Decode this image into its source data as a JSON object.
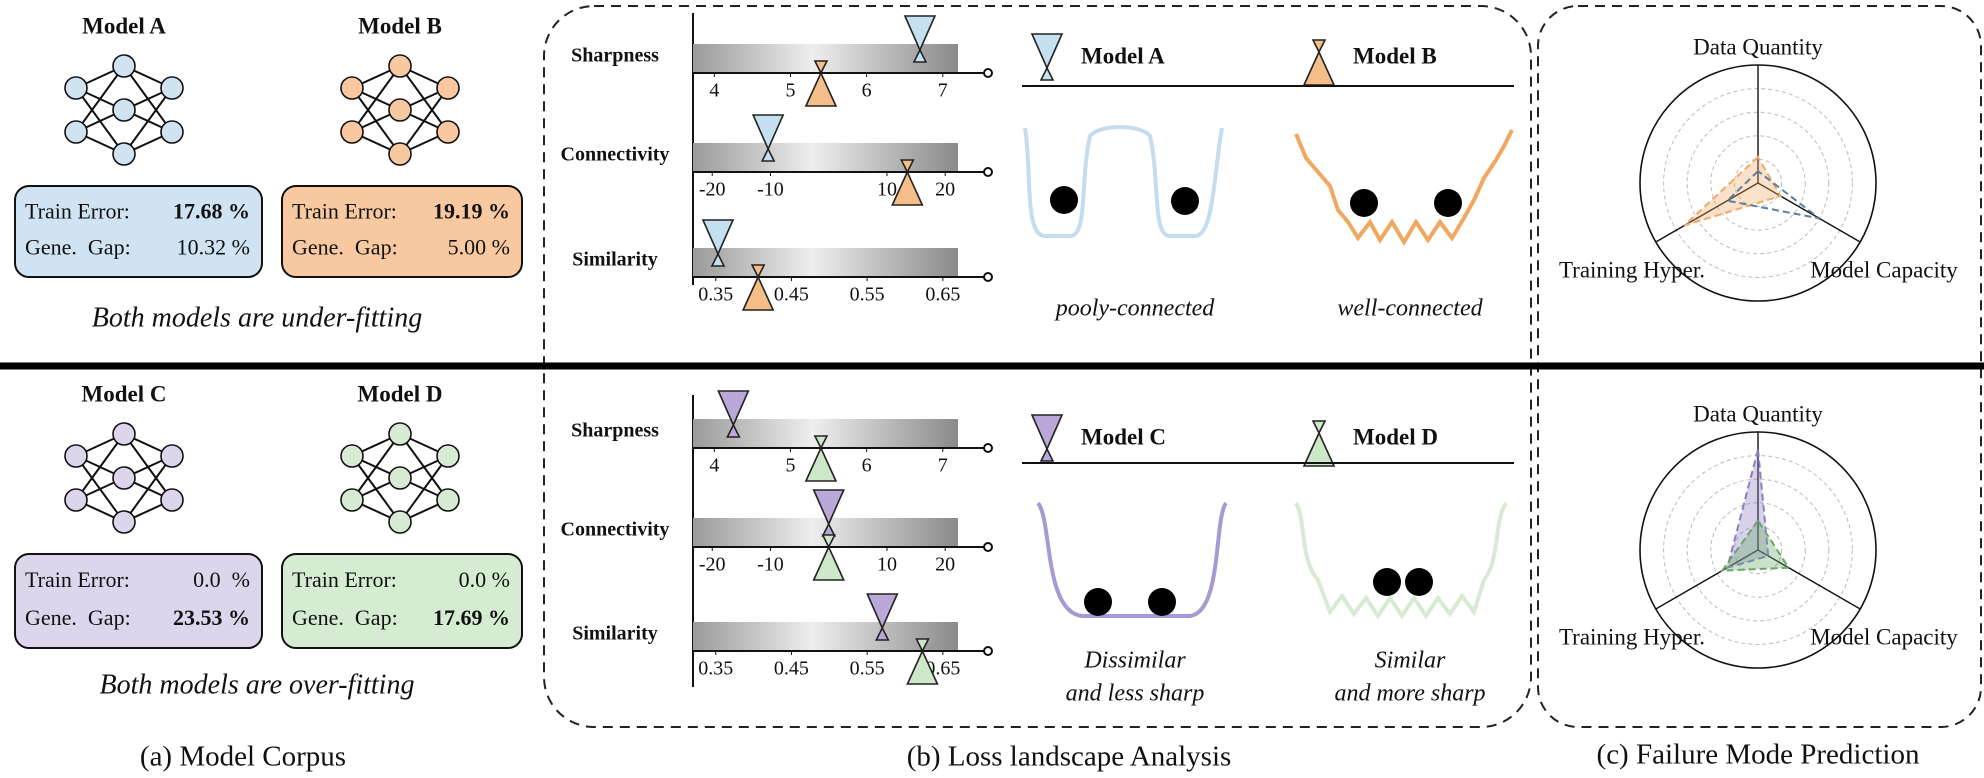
{
  "corpus": {
    "caption": "(a) Model Corpus",
    "rows": [
      {
        "models": [
          {
            "name": "Model A",
            "color": "#cfe3f3",
            "train_error_label": "Train Error:",
            "train_error": "17.68 %",
            "train_error_bold": true,
            "gap_label": "Gene.  Gap:",
            "gap": "10.32 %",
            "gap_bold": false
          },
          {
            "name": "Model B",
            "color": "#f8c9a0",
            "train_error_label": "Train Error:",
            "train_error": "19.19 %",
            "train_error_bold": true,
            "gap_label": "Gene.  Gap:",
            "gap": "5.00 %",
            "gap_bold": false
          }
        ],
        "conclusion": "Both models are under-fitting"
      },
      {
        "models": [
          {
            "name": "Model C",
            "color": "#ddd5ec",
            "train_error_label": "Train Error:",
            "train_error": "0.0  %",
            "train_error_bold": false,
            "gap_label": "Gene.  Gap:",
            "gap": "23.53 %",
            "gap_bold": true
          },
          {
            "name": "Model D",
            "color": "#d5ecd2",
            "train_error_label": "Train Error:",
            "train_error": "0.0 %",
            "train_error_bold": false,
            "gap_label": "Gene.  Gap:",
            "gap": "17.69 %",
            "gap_bold": true
          }
        ],
        "conclusion": "Both models are over-fitting"
      }
    ]
  },
  "landscape": {
    "caption": "(b) Loss landscape Analysis",
    "rows": [
      {
        "metrics": [
          {
            "name": "Sharpness",
            "xlim": [
              3.72,
              7.2
            ],
            "xticks": [
              4,
              5,
              6,
              7
            ]
          },
          {
            "name": "Connectivity",
            "xlim": [
              -23.3,
              22.2
            ],
            "xticks": [
              -20,
              -10,
              10,
              20
            ]
          },
          {
            "name": "Similarity",
            "xlim": [
              0.32,
              0.67
            ],
            "xticks": [
              0.35,
              0.45,
              0.55,
              0.65
            ]
          }
        ],
        "series": [
          {
            "name": "Model A",
            "color": "#c5e0f0",
            "position": "above",
            "values": [
              6.7,
              -10.4,
              0.353
            ]
          },
          {
            "name": "Model B",
            "color": "#f5bd88",
            "position": "below",
            "values": [
              5.4,
              13.5,
              0.406
            ]
          }
        ],
        "landscape_labels": [
          [
            "pooly-connected"
          ],
          [
            "well-connected"
          ]
        ]
      },
      {
        "metrics": [
          {
            "name": "Sharpness",
            "xlim": [
              3.72,
              7.2
            ],
            "xticks": [
              4,
              5,
              6,
              7
            ]
          },
          {
            "name": "Connectivity",
            "xlim": [
              -23.3,
              22.2
            ],
            "xticks": [
              -20,
              -10,
              10,
              20
            ]
          },
          {
            "name": "Similarity",
            "xlim": [
              0.32,
              0.67
            ],
            "xticks": [
              0.35,
              0.45,
              0.55,
              0.65
            ]
          }
        ],
        "series": [
          {
            "name": "Model C",
            "color": "#b9a8d8",
            "position": "above",
            "values": [
              4.25,
              0,
              0.57
            ]
          },
          {
            "name": "Model D",
            "color": "#cde8c8",
            "position": "below",
            "values": [
              5.4,
              0,
              0.623
            ]
          }
        ],
        "landscape_labels": [
          [
            "Dissimilar",
            "and less sharp"
          ],
          [
            "Similar",
            "and more sharp"
          ]
        ]
      }
    ]
  },
  "prediction": {
    "caption": "(c) Failure Mode Prediction",
    "rlim": [
      0,
      1
    ],
    "rticks": [
      0.2,
      0.4,
      0.6,
      0.8,
      1
    ],
    "radars": [
      {
        "axes": [
          "Data Quantity",
          "Training Hyper.",
          "Model Capacity"
        ],
        "series": [
          {
            "color": "#f0a868",
            "fill": true,
            "values": [
              0.22,
              0.72,
              0.22
            ]
          },
          {
            "color": "#5c7fa0",
            "fill": false,
            "values": [
              0.1,
              0.3,
              0.6
            ]
          }
        ]
      },
      {
        "axes": [
          "Data Quantity",
          "Training Hyper.",
          "Model Capacity"
        ],
        "series": [
          {
            "color": "#8e7cc3",
            "fill": true,
            "values": [
              0.85,
              0.3,
              0.1
            ]
          },
          {
            "color": "#6aa56a",
            "fill": true,
            "values": [
              0.25,
              0.35,
              0.3
            ]
          }
        ]
      }
    ]
  }
}
